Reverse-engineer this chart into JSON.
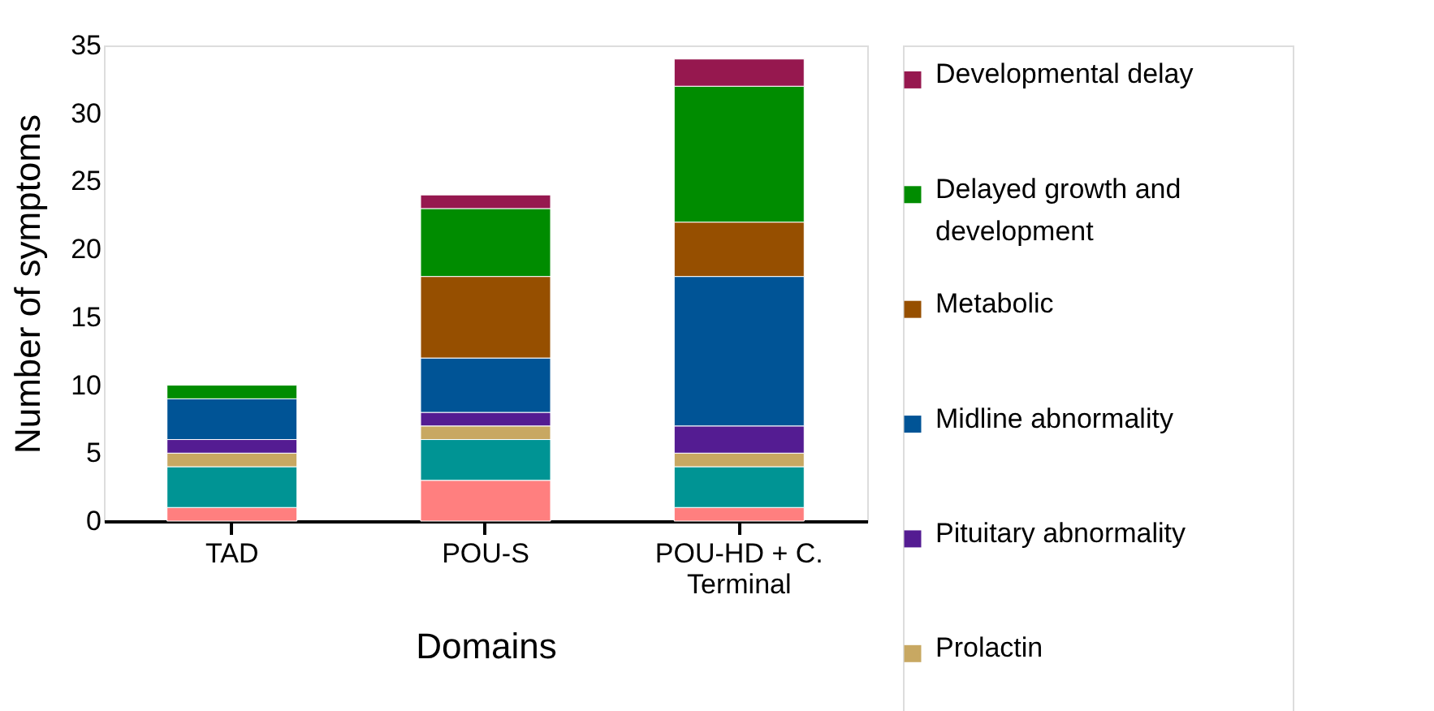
{
  "chart_data": {
    "type": "bar",
    "stacked": true,
    "xlabel": "Domains",
    "ylabel": "Number of symptoms",
    "categories": [
      "TAD",
      "POU-S",
      "POU-HD + C. Terminal"
    ],
    "ylim": [
      0,
      35
    ],
    "yticks": [
      0,
      5,
      10,
      15,
      20,
      25,
      30,
      35
    ],
    "grid": false,
    "legend": "right",
    "series": [
      {
        "color": "#ff7f7f",
        "values": [
          1,
          3,
          1
        ]
      },
      {
        "color": "#009494",
        "values": [
          3,
          3,
          3
        ]
      },
      {
        "name": "Prolactin",
        "color": "#c8a862",
        "values": [
          1,
          1,
          1
        ]
      },
      {
        "name": "Pituitary abnormality",
        "color": "#541c92",
        "values": [
          1,
          1,
          2
        ]
      },
      {
        "name": "Midline abnormality",
        "color": "#005496",
        "values": [
          3,
          4,
          11
        ]
      },
      {
        "name": "Metabolic",
        "color": "#964f00",
        "values": [
          0,
          6,
          4
        ]
      },
      {
        "name": "Delayed growth and development",
        "color": "#008c00",
        "values": [
          1,
          5,
          10
        ]
      },
      {
        "name": "Developmental delay",
        "color": "#96184f",
        "values": [
          0,
          1,
          2
        ]
      }
    ]
  }
}
